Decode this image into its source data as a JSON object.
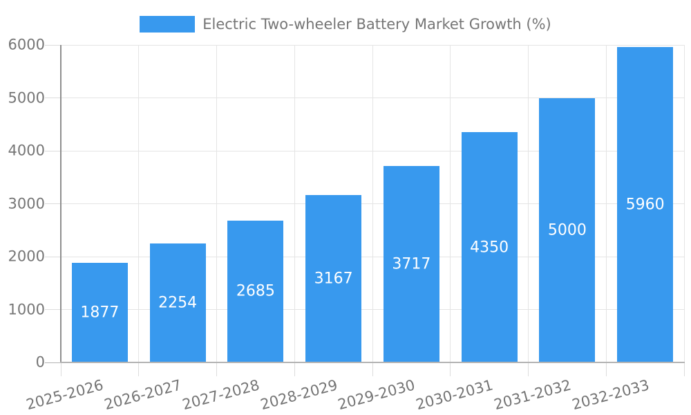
{
  "chart_data": {
    "type": "bar",
    "title": "Electric Two-wheeler Battery Market Growth (%)",
    "series_name": "Electric Two-wheeler Battery Market Growth (%)",
    "categories": [
      "2025-2026",
      "2026-2027",
      "2027-2028",
      "2028-2029",
      "2029-2030",
      "2030-2031",
      "2031-2032",
      "2032-2033"
    ],
    "values": [
      1877,
      2254,
      2685,
      3167,
      3717,
      4350,
      5000,
      5960
    ],
    "xlabel": "",
    "ylabel": "",
    "ylim": [
      0,
      6000
    ],
    "yticks": [
      0,
      1000,
      2000,
      3000,
      4000,
      5000,
      6000
    ],
    "grid": "on",
    "legend_position": "top-center",
    "x_label_rotation_deg": -15,
    "value_labels": "inside-bar-centered"
  },
  "colors": {
    "bar": "#3899EE",
    "bar_value_text": "#FFFFFF",
    "axis_text": "#757575",
    "gridline": "#E4E4E4",
    "tick": "#DCDCDC",
    "y_axis_line": "#8F8F8F",
    "x_axis_line": "#B3B3B3",
    "background": "#FFFFFF"
  }
}
